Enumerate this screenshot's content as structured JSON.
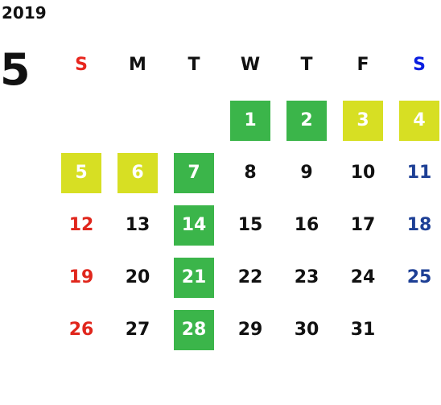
{
  "year": "2019",
  "month": "5",
  "weekdays": [
    "S",
    "M",
    "T",
    "W",
    "T",
    "F",
    "S"
  ],
  "weekday_colors": [
    "#e8261e",
    "#111111",
    "#111111",
    "#111111",
    "#111111",
    "#111111",
    "#0a1ee0"
  ],
  "day_colors": [
    "#e0261c",
    "#111111",
    "#111111",
    "#111111",
    "#111111",
    "#111111",
    "#1d3f95"
  ],
  "weeks": [
    [
      null,
      null,
      null,
      {
        "day": 1,
        "fill": "#3bb54a"
      },
      {
        "day": 2,
        "fill": "#3bb54a"
      },
      {
        "day": 3,
        "fill": "#d7df23"
      },
      {
        "day": 4,
        "fill": "#d7df23"
      }
    ],
    [
      {
        "day": 5,
        "fill": "#d7df23"
      },
      {
        "day": 6,
        "fill": "#d7df23"
      },
      {
        "day": 7,
        "fill": "#3bb54a"
      },
      8,
      9,
      10,
      11
    ],
    [
      12,
      13,
      {
        "day": 14,
        "fill": "#3bb54a"
      },
      15,
      16,
      17,
      18
    ],
    [
      19,
      20,
      {
        "day": 21,
        "fill": "#3bb54a"
      },
      22,
      23,
      24,
      25
    ],
    [
      26,
      27,
      {
        "day": 28,
        "fill": "#3bb54a"
      },
      29,
      30,
      31,
      null
    ]
  ]
}
